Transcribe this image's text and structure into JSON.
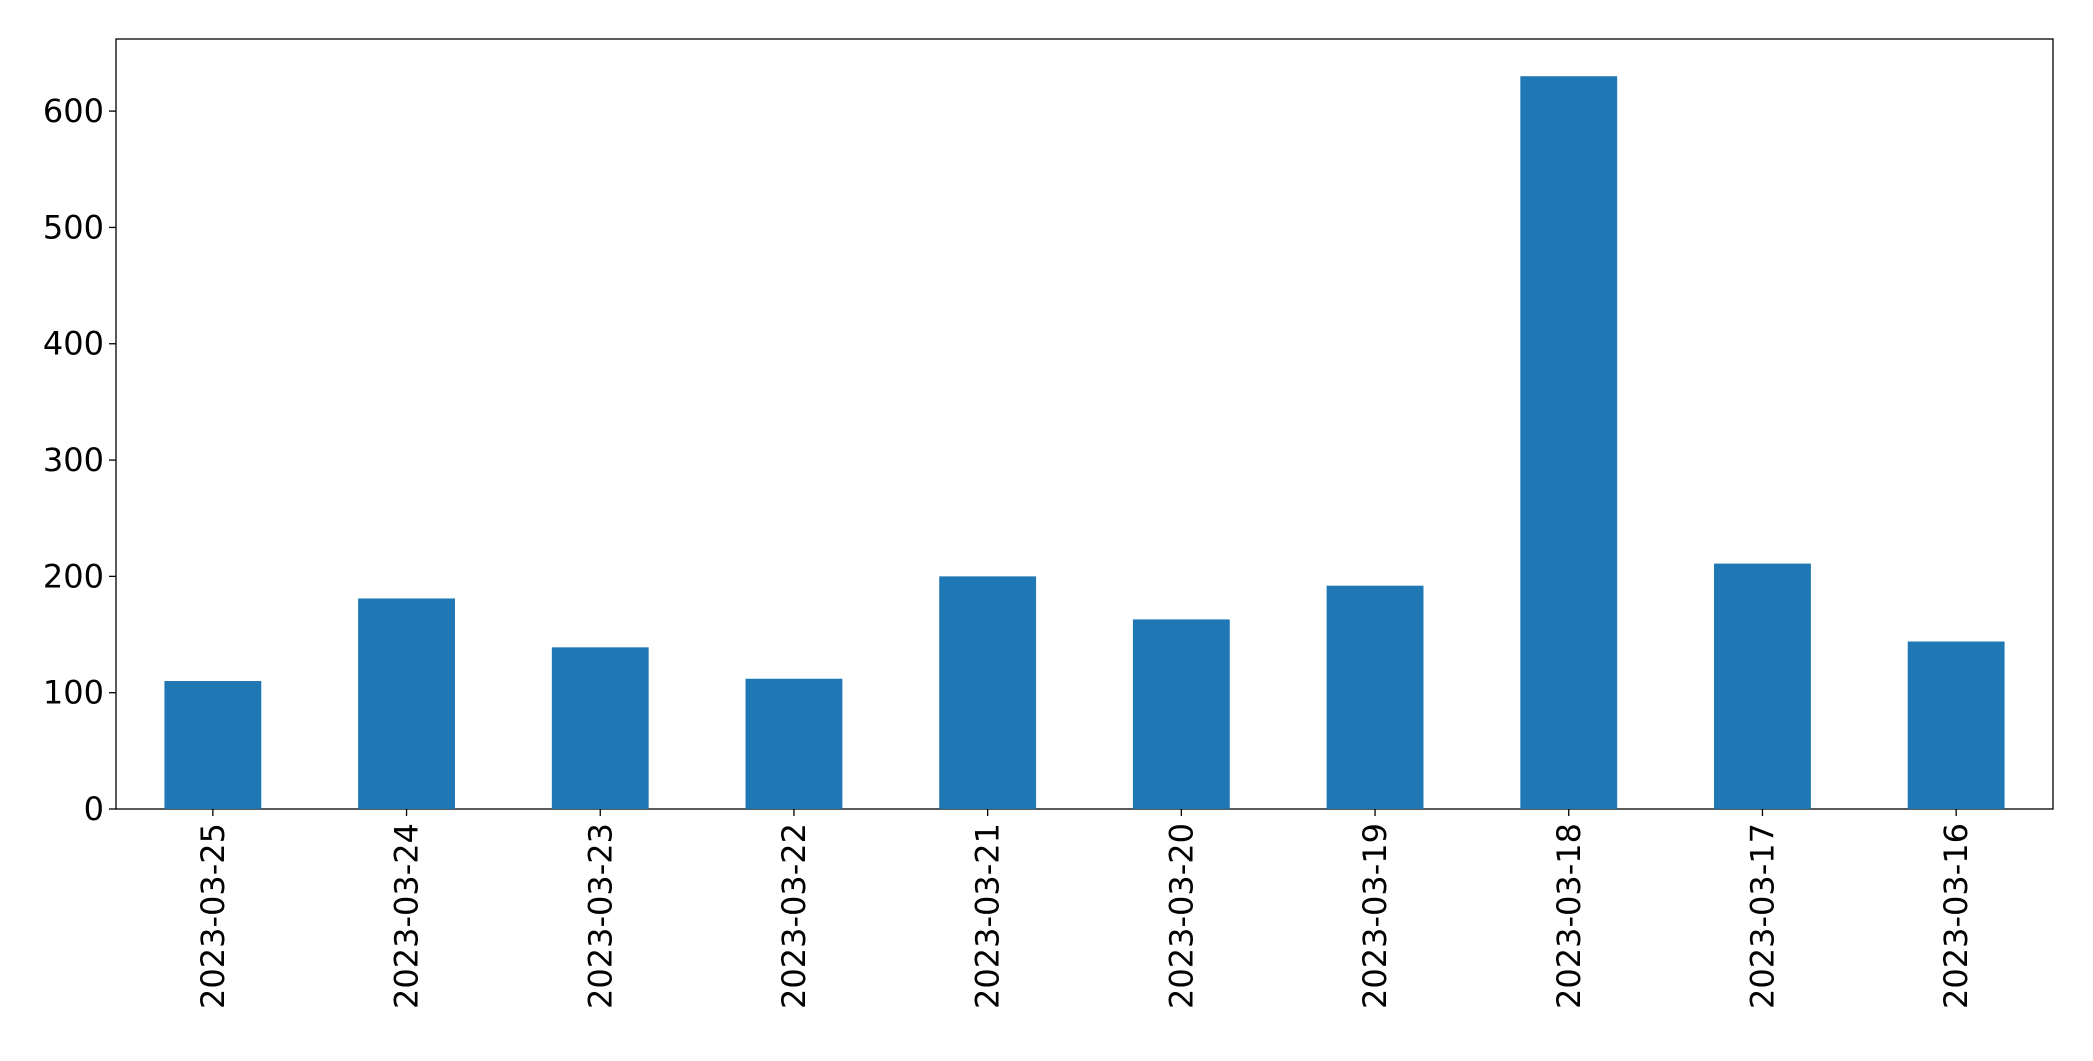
{
  "chart_data": {
    "type": "bar",
    "categories": [
      "2023-03-25",
      "2023-03-24",
      "2023-03-23",
      "2023-03-22",
      "2023-03-21",
      "2023-03-20",
      "2023-03-19",
      "2023-03-18",
      "2023-03-17",
      "2023-03-16"
    ],
    "values": [
      110,
      181,
      139,
      112,
      200,
      163,
      192,
      630,
      211,
      144
    ],
    "color": "#1f77b4",
    "ylim": [
      0,
      662
    ],
    "yticks": [
      0,
      100,
      200,
      300,
      400,
      500,
      600
    ],
    "grid": false
  }
}
